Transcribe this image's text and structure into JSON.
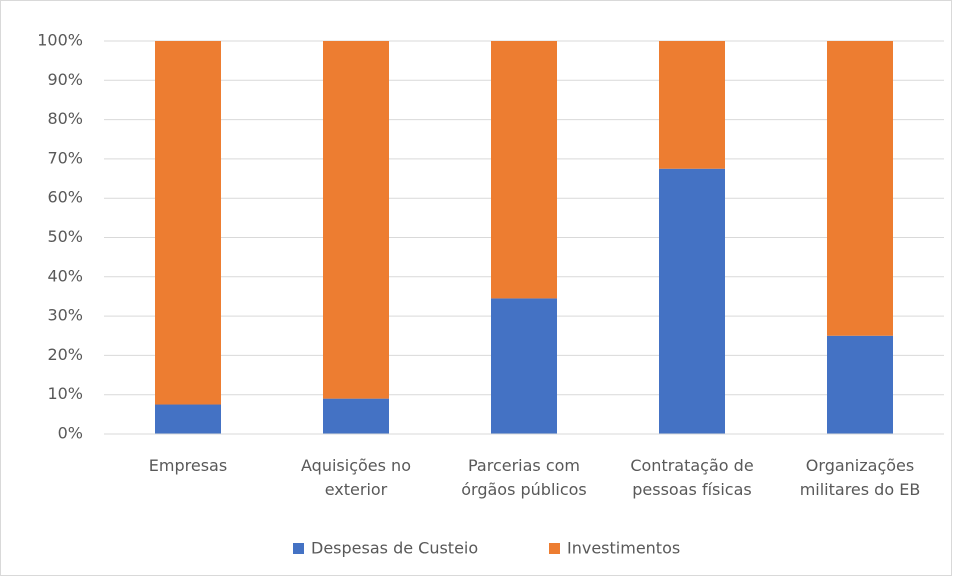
{
  "chart_data": {
    "type": "stacked_bar",
    "categories": [
      "Empresas",
      "Aquisições no exterior",
      "Parcerias com órgãos públicos",
      "Contratação de pessoas físicas",
      "Organizações militares do EB"
    ],
    "series": [
      {
        "name": "Despesas de Custeio",
        "color": "#4472c4",
        "values": [
          7.5,
          9,
          34.5,
          67.5,
          25
        ]
      },
      {
        "name": "Investimentos",
        "color": "#ed7d31",
        "values": [
          92.5,
          91,
          65.5,
          32.5,
          75
        ]
      }
    ],
    "ylim": [
      0,
      100
    ],
    "yticks": [
      {
        "value": 0,
        "label": "0%"
      },
      {
        "value": 10,
        "label": "10%"
      },
      {
        "value": 20,
        "label": "20%"
      },
      {
        "value": 30,
        "label": "30%"
      },
      {
        "value": 40,
        "label": "40%"
      },
      {
        "value": 50,
        "label": "50%"
      },
      {
        "value": 60,
        "label": "60%"
      },
      {
        "value": 70,
        "label": "70%"
      },
      {
        "value": 80,
        "label": "80%"
      },
      {
        "value": 90,
        "label": "90%"
      },
      {
        "value": 100,
        "label": "100%"
      }
    ],
    "grid": true,
    "legend": "bottom"
  }
}
